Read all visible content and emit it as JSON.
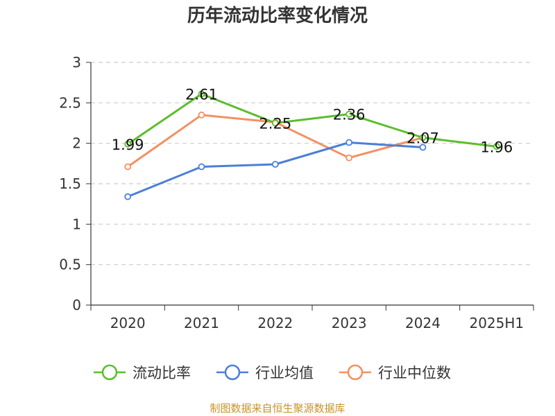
{
  "title": "历年流动比率变化情况",
  "source": "制图数据来自恒生聚源数据库",
  "chart_data": {
    "type": "line",
    "title": "历年流动比率变化情况",
    "categories": [
      "2020",
      "2021",
      "2022",
      "2023",
      "2024",
      "2025H1"
    ],
    "y_ticks": [
      "0",
      "0.5",
      "1",
      "1.5",
      "2",
      "2.5",
      "3"
    ],
    "ylim": [
      0,
      3
    ],
    "grid": true,
    "legend_position": "bottom",
    "series": [
      {
        "name": "流动比率",
        "color": "#5cbd2b",
        "values": [
          1.99,
          2.61,
          2.25,
          2.36,
          2.07,
          1.96
        ],
        "labels": [
          "1.99",
          "2.61",
          "2.25",
          "2.36",
          "2.07",
          "1.96"
        ]
      },
      {
        "name": "行业均值",
        "color": "#4a7fd6",
        "values": [
          1.34,
          1.71,
          1.74,
          2.01,
          1.95,
          null
        ]
      },
      {
        "name": "行业中位数",
        "color": "#f39062",
        "values": [
          1.71,
          2.35,
          2.26,
          1.82,
          2.07,
          null
        ]
      }
    ]
  }
}
